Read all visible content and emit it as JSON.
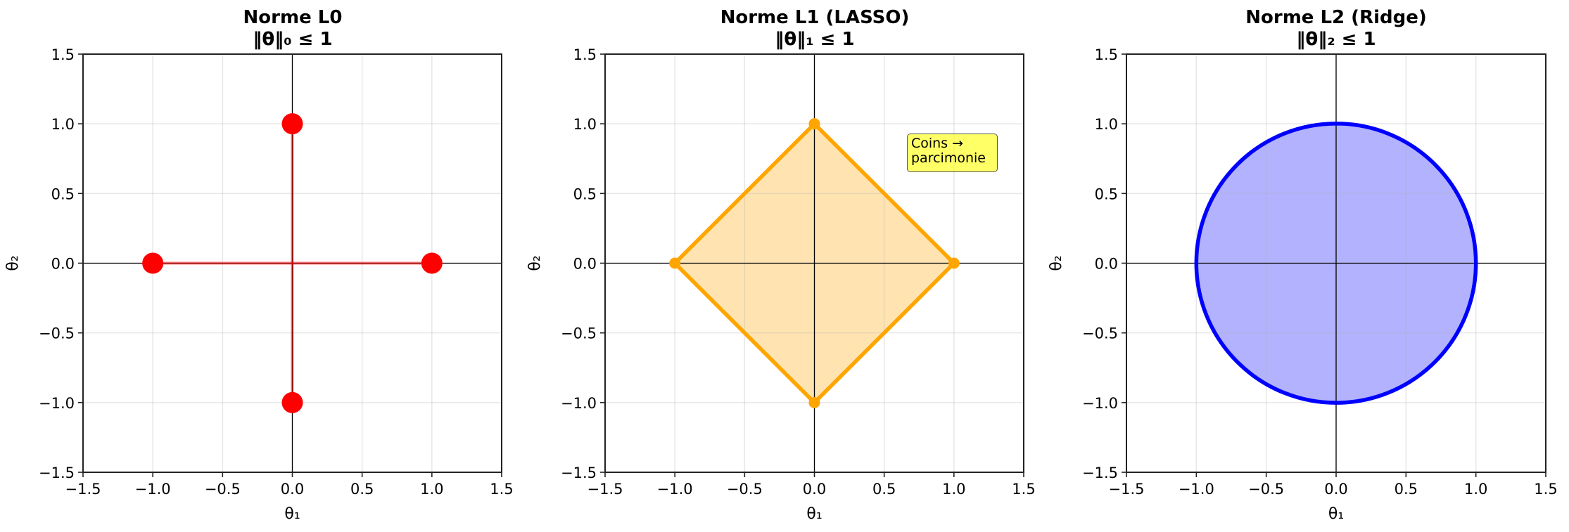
{
  "figure": {
    "background": "#ffffff"
  },
  "chart_data": [
    {
      "type": "scatter",
      "title": "Norme L0",
      "subtitle": "‖θ‖₀ ≤ 1",
      "xlabel": "θ₁",
      "ylabel": "θ₂",
      "xlim": [
        -1.5,
        1.5
      ],
      "ylim": [
        -1.5,
        1.5
      ],
      "xticks": [
        "−1.5",
        "−1.0",
        "−0.5",
        "0.0",
        "0.5",
        "1.0",
        "1.5"
      ],
      "yticks": [
        "−1.5",
        "−1.0",
        "−0.5",
        "0.0",
        "0.5",
        "1.0",
        "1.5"
      ],
      "grid": true,
      "axes_lines": true,
      "series": [
        {
          "name": "segments",
          "kind": "lines",
          "color": "#ff0000",
          "alpha": 0.5,
          "width": 4,
          "segments": [
            [
              [
                -1,
                0
              ],
              [
                1,
                0
              ]
            ],
            [
              [
                0,
                -1
              ],
              [
                0,
                1
              ]
            ]
          ]
        },
        {
          "name": "points",
          "kind": "points",
          "color": "#ff0000",
          "radius": 15,
          "points": [
            [
              1,
              0
            ],
            [
              -1,
              0
            ],
            [
              0,
              1
            ],
            [
              0,
              -1
            ]
          ]
        }
      ]
    },
    {
      "type": "area",
      "title": "Norme L1 (LASSO)",
      "subtitle": "‖θ‖₁ ≤ 1",
      "xlabel": "θ₁",
      "ylabel": "θ₂",
      "xlim": [
        -1.5,
        1.5
      ],
      "ylim": [
        -1.5,
        1.5
      ],
      "xticks": [
        "−1.5",
        "−1.0",
        "−0.5",
        "0.0",
        "0.5",
        "1.0",
        "1.5"
      ],
      "yticks": [
        "−1.5",
        "−1.0",
        "−0.5",
        "0.0",
        "0.5",
        "1.0",
        "1.5"
      ],
      "grid": true,
      "axes_lines": true,
      "series": [
        {
          "name": "diamond",
          "kind": "polygon",
          "color": "#ffa500",
          "fill_alpha": 0.3,
          "width": 5.5,
          "points": [
            [
              1,
              0
            ],
            [
              0,
              1
            ],
            [
              -1,
              0
            ],
            [
              0,
              -1
            ]
          ]
        },
        {
          "name": "corners",
          "kind": "points",
          "color": "#ffa500",
          "radius": 8,
          "points": [
            [
              1,
              0
            ],
            [
              0,
              1
            ],
            [
              -1,
              0
            ],
            [
              0,
              -1
            ]
          ]
        }
      ],
      "annotation": {
        "text": "Coins →\nparcimonie",
        "x": 0.7,
        "y": 0.85,
        "background": "#ffff66"
      }
    },
    {
      "type": "area",
      "title": "Norme L2 (Ridge)",
      "subtitle": "‖θ‖₂ ≤ 1",
      "xlabel": "θ₁",
      "ylabel": "θ₂",
      "xlim": [
        -1.5,
        1.5
      ],
      "ylim": [
        -1.5,
        1.5
      ],
      "xticks": [
        "−1.5",
        "−1.0",
        "−0.5",
        "0.0",
        "0.5",
        "1.0",
        "1.5"
      ],
      "yticks": [
        "−1.5",
        "−1.0",
        "−0.5",
        "0.0",
        "0.5",
        "1.0",
        "1.5"
      ],
      "grid": true,
      "axes_lines": true,
      "series": [
        {
          "name": "circle",
          "kind": "circle",
          "color": "#0000ff",
          "fill_alpha": 0.3,
          "width": 5.5,
          "center": [
            0,
            0
          ],
          "r": 1
        }
      ]
    }
  ]
}
